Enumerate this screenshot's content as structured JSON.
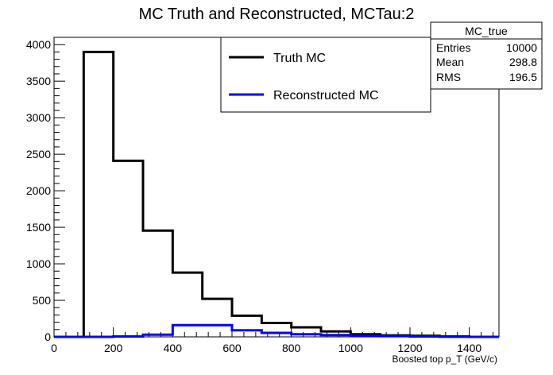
{
  "chart_data": {
    "type": "histogram",
    "title": "MC Truth and Reconstructed, MCTau:2",
    "xlabel": "Boosted top p_T (GeV/c)",
    "ylabel": "",
    "xlim": [
      0,
      1500
    ],
    "ylim": [
      0,
      4100
    ],
    "x_ticks": [
      "0",
      "200",
      "400",
      "600",
      "800",
      "1000",
      "1200",
      "1400"
    ],
    "y_ticks": [
      "0",
      "500",
      "1000",
      "1500",
      "2000",
      "2500",
      "3000",
      "3500",
      "4000"
    ],
    "bin_edges": [
      0,
      100,
      200,
      300,
      400,
      500,
      600,
      700,
      800,
      900,
      1000,
      1100,
      1200,
      1300,
      1400,
      1500
    ],
    "series": [
      {
        "name": "Truth MC",
        "color": "#000000",
        "values": [
          0,
          3900,
          2410,
          1455,
          880,
          520,
          290,
          190,
          130,
          75,
          35,
          20,
          15,
          5,
          0
        ]
      },
      {
        "name": "Reconstructed MC",
        "color": "#0000ff",
        "values": [
          0,
          0,
          5,
          30,
          160,
          160,
          90,
          55,
          35,
          25,
          15,
          10,
          5,
          2,
          0
        ]
      }
    ],
    "legend": "top-center",
    "grid": false,
    "stats_box": {
      "name": "MC_true",
      "rows": [
        {
          "label": "Entries",
          "value": "10000"
        },
        {
          "label": "Mean",
          "value": "298.8"
        },
        {
          "label": "RMS",
          "value": "196.5"
        }
      ]
    }
  }
}
